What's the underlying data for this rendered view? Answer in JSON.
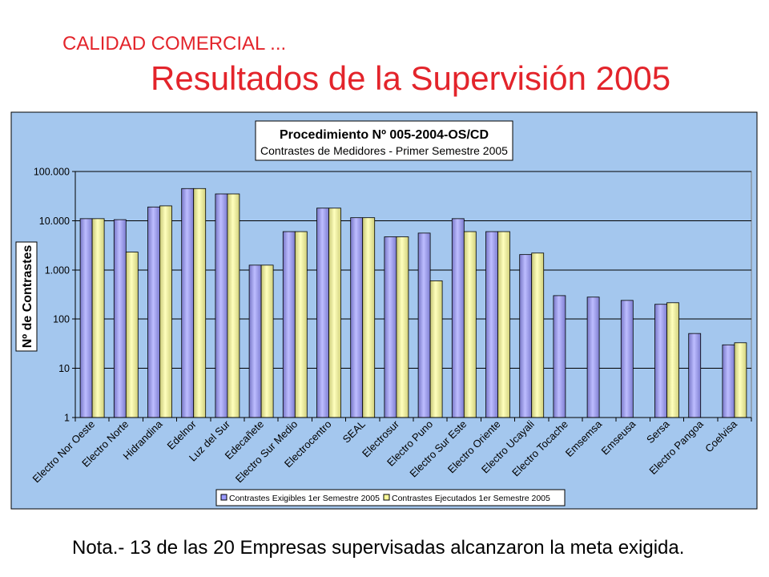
{
  "slide": {
    "kicker": "CALIDAD COMERCIAL ...",
    "title": "Resultados de la Supervisión 2005",
    "note": "Nota.- 13 de las 20 Empresas supervisadas alcanzaron la meta exigida."
  },
  "colors": {
    "title_red": "#E3242B",
    "chart_background": "#A4C7EE"
  },
  "chart_data": {
    "type": "bar",
    "title": "Procedimiento Nº 005-2004-OS/CD",
    "subtitle": "Contrastes de Medidores - Primer Semestre 2005",
    "ylabel": "Nº de Contrastes",
    "yscale": "log",
    "ylim": [
      1,
      100000
    ],
    "yticks": [
      1,
      10,
      100,
      1000,
      10000,
      100000
    ],
    "ytick_labels": [
      "1",
      "10",
      "100",
      "1.000",
      "10.000",
      "100.000"
    ],
    "grid": true,
    "legend_position": "bottom",
    "categories": [
      "Electro Nor Oeste",
      "Electro Norte",
      "Hidrandina",
      "Edelnor",
      "Luz del Sur",
      "Edecañete",
      "Electro Sur Medio",
      "Electrocentro",
      "SEAL",
      "Electrosur",
      "Electro Puno",
      "Electro Sur Este",
      "Electro Oriente",
      "Electro Ucayali",
      "Electro Tocache",
      "Emsemsa",
      "Emseusa",
      "Sersa",
      "Electro Pangoa",
      "Coelvisa"
    ],
    "series": [
      {
        "name": "Contrastes Exigibles 1er Semestre 2005",
        "color": "#9999FF",
        "values": [
          11000,
          10500,
          19000,
          45000,
          35000,
          1250,
          6000,
          18000,
          11500,
          4700,
          5600,
          11000,
          6000,
          2050,
          300,
          280,
          240,
          200,
          51,
          30
        ]
      },
      {
        "name": "Contrastes Ejecutados 1er Semestre 2005",
        "color": "#FFFF99",
        "values": [
          11000,
          2300,
          20000,
          45000,
          35000,
          1250,
          6000,
          18000,
          11500,
          4700,
          600,
          6000,
          6000,
          2200,
          null,
          null,
          null,
          215,
          null,
          33
        ]
      }
    ]
  }
}
